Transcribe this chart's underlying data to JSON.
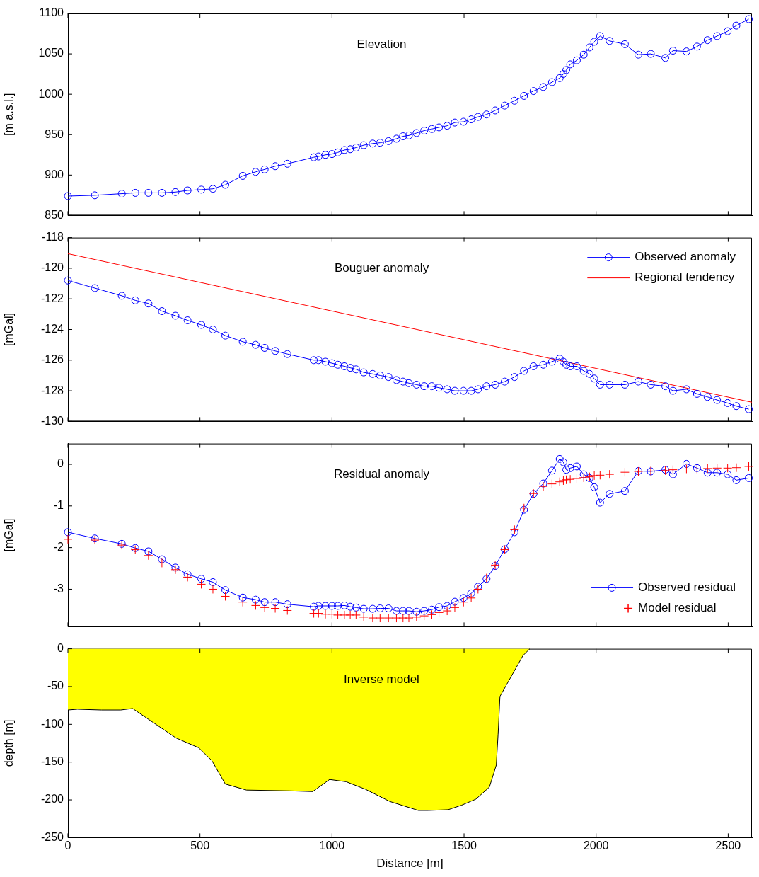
{
  "chart_data": [
    {
      "type": "line",
      "title": "Elevation",
      "ylabel": "[m a.s.l.]",
      "xlim": [
        0,
        2590
      ],
      "xticks": [
        0,
        500,
        1000,
        1500,
        2000,
        2500
      ],
      "ylim": [
        850,
        1100
      ],
      "yticks": [
        850,
        900,
        950,
        1000,
        1050,
        1100
      ],
      "tick_labels": "y",
      "legend": false,
      "x": [
        0,
        102,
        204,
        255,
        305,
        356,
        407,
        453,
        505,
        549,
        596,
        662,
        711,
        745,
        785,
        831,
        931,
        949,
        975,
        1000,
        1022,
        1047,
        1069,
        1091,
        1120,
        1154,
        1182,
        1214,
        1244,
        1269,
        1291,
        1320,
        1349,
        1378,
        1405,
        1436,
        1465,
        1498,
        1527,
        1553,
        1585,
        1618,
        1654,
        1691,
        1727,
        1763,
        1800,
        1833,
        1862,
        1876,
        1887,
        1902,
        1927,
        1953,
        1975,
        1993,
        2015,
        2051,
        2109,
        2160,
        2207,
        2262,
        2291,
        2342,
        2382,
        2422,
        2458,
        2498,
        2531,
        2578
      ],
      "series": [
        {
          "color": "#0000ff",
          "marker": "circle",
          "values": [
            874,
            875,
            877,
            878,
            878,
            878,
            879,
            881,
            882,
            883,
            888,
            899,
            904,
            907,
            911,
            914,
            922,
            923,
            925,
            926,
            928,
            931,
            932,
            934,
            937,
            939,
            940,
            942,
            945,
            948,
            949,
            952,
            955,
            957,
            959,
            961,
            965,
            966,
            969,
            972,
            975,
            980,
            986,
            992,
            998,
            1004,
            1009,
            1015,
            1020,
            1025,
            1030,
            1037,
            1042,
            1049,
            1058,
            1065,
            1072,
            1066,
            1062,
            1049,
            1050,
            1045,
            1054,
            1053,
            1059,
            1067,
            1072,
            1078,
            1085,
            1093
          ]
        }
      ]
    },
    {
      "type": "line",
      "title": "Bouguer anomaly",
      "ylabel": "[mGal]",
      "xlim": [
        0,
        2590
      ],
      "xticks": [
        0,
        500,
        1000,
        1500,
        2000,
        2500
      ],
      "ylim": [
        -130,
        -118
      ],
      "yticks": [
        -130,
        -128,
        -126,
        -124,
        -122,
        -120,
        -118
      ],
      "tick_labels": "y",
      "legend": "top right",
      "x": [
        0,
        102,
        204,
        255,
        305,
        356,
        407,
        453,
        505,
        549,
        596,
        662,
        711,
        745,
        785,
        831,
        931,
        949,
        975,
        1000,
        1022,
        1047,
        1069,
        1091,
        1120,
        1154,
        1182,
        1214,
        1244,
        1269,
        1291,
        1320,
        1349,
        1378,
        1405,
        1436,
        1465,
        1498,
        1527,
        1553,
        1585,
        1618,
        1654,
        1691,
        1727,
        1763,
        1800,
        1833,
        1862,
        1876,
        1887,
        1902,
        1927,
        1953,
        1975,
        1993,
        2015,
        2051,
        2109,
        2160,
        2207,
        2262,
        2291,
        2342,
        2382,
        2422,
        2458,
        2498,
        2531,
        2578
      ],
      "series": [
        {
          "name": "Observed anomaly",
          "color": "#0000ff",
          "marker": "circle",
          "values": [
            -120.8,
            -121.3,
            -121.8,
            -122.1,
            -122.3,
            -122.8,
            -123.1,
            -123.4,
            -123.7,
            -124.0,
            -124.4,
            -124.8,
            -125.0,
            -125.2,
            -125.4,
            -125.6,
            -126.0,
            -126.0,
            -126.1,
            -126.2,
            -126.3,
            -126.4,
            -126.5,
            -126.6,
            -126.8,
            -126.9,
            -127.0,
            -127.1,
            -127.3,
            -127.4,
            -127.5,
            -127.6,
            -127.7,
            -127.7,
            -127.8,
            -127.9,
            -128.0,
            -128.0,
            -128.0,
            -127.9,
            -127.7,
            -127.6,
            -127.4,
            -127.1,
            -126.7,
            -126.4,
            -126.3,
            -126.1,
            -125.9,
            -126.1,
            -126.3,
            -126.4,
            -126.4,
            -126.7,
            -126.9,
            -127.2,
            -127.6,
            -127.6,
            -127.6,
            -127.4,
            -127.6,
            -127.7,
            -128.0,
            -127.9,
            -128.2,
            -128.4,
            -128.6,
            -128.8,
            -129.0,
            -129.2
          ]
        },
        {
          "name": "Regional tendency",
          "color": "#ff0000",
          "marker": "none",
          "x": [
            0,
            2590
          ],
          "values": [
            -119.05,
            -128.75
          ]
        }
      ]
    },
    {
      "type": "line",
      "title": "Residual anomaly",
      "ylabel": "[mGal]",
      "xlim": [
        0,
        2590
      ],
      "xticks": [
        0,
        500,
        1000,
        1500,
        2000,
        2500
      ],
      "ylim": [
        -3.9,
        0.5
      ],
      "yticks": [
        -3,
        -2,
        -1,
        0
      ],
      "tick_labels": "y",
      "legend": "bottom right",
      "x": [
        0,
        102,
        204,
        255,
        305,
        356,
        407,
        453,
        505,
        549,
        596,
        662,
        711,
        745,
        785,
        831,
        931,
        949,
        975,
        1000,
        1022,
        1047,
        1069,
        1091,
        1120,
        1154,
        1182,
        1214,
        1244,
        1269,
        1291,
        1320,
        1349,
        1378,
        1405,
        1436,
        1465,
        1498,
        1527,
        1553,
        1585,
        1618,
        1654,
        1691,
        1727,
        1763,
        1800,
        1833,
        1862,
        1876,
        1887,
        1902,
        1927,
        1953,
        1975,
        1993,
        2015,
        2051,
        2109,
        2160,
        2207,
        2262,
        2291,
        2342,
        2382,
        2422,
        2458,
        2498,
        2531,
        2578
      ],
      "series": [
        {
          "name": "Observed residual",
          "color": "#0000ff",
          "marker": "circle",
          "values": [
            -1.63,
            -1.78,
            -1.91,
            -2.01,
            -2.09,
            -2.28,
            -2.48,
            -2.64,
            -2.75,
            -2.83,
            -3.02,
            -3.2,
            -3.25,
            -3.31,
            -3.31,
            -3.36,
            -3.42,
            -3.4,
            -3.4,
            -3.4,
            -3.4,
            -3.39,
            -3.42,
            -3.44,
            -3.47,
            -3.47,
            -3.46,
            -3.46,
            -3.52,
            -3.52,
            -3.52,
            -3.54,
            -3.52,
            -3.49,
            -3.43,
            -3.4,
            -3.3,
            -3.21,
            -3.1,
            -2.94,
            -2.75,
            -2.44,
            -2.04,
            -1.63,
            -1.09,
            -0.71,
            -0.46,
            -0.15,
            0.13,
            0.05,
            -0.13,
            -0.09,
            -0.05,
            -0.24,
            -0.33,
            -0.55,
            -0.92,
            -0.71,
            -0.64,
            -0.16,
            -0.17,
            -0.13,
            -0.24,
            0.01,
            -0.09,
            -0.2,
            -0.2,
            -0.24,
            -0.38,
            -0.33
          ]
        },
        {
          "type": "scatter",
          "name": "Model residual",
          "color": "#ff0000",
          "marker": "cross",
          "values": [
            -1.8,
            -1.82,
            -1.94,
            -2.05,
            -2.19,
            -2.37,
            -2.53,
            -2.71,
            -2.88,
            -3.0,
            -3.17,
            -3.31,
            -3.39,
            -3.44,
            -3.46,
            -3.51,
            -3.58,
            -3.58,
            -3.6,
            -3.6,
            -3.62,
            -3.62,
            -3.62,
            -3.62,
            -3.67,
            -3.69,
            -3.69,
            -3.69,
            -3.69,
            -3.69,
            -3.69,
            -3.67,
            -3.64,
            -3.61,
            -3.56,
            -3.52,
            -3.44,
            -3.31,
            -3.21,
            -3.0,
            -2.73,
            -2.42,
            -2.05,
            -1.57,
            -1.05,
            -0.7,
            -0.53,
            -0.47,
            -0.42,
            -0.39,
            -0.37,
            -0.36,
            -0.34,
            -0.32,
            -0.3,
            -0.27,
            -0.26,
            -0.24,
            -0.19,
            -0.17,
            -0.16,
            -0.15,
            -0.13,
            -0.11,
            -0.11,
            -0.1,
            -0.09,
            -0.09,
            -0.08,
            -0.05
          ]
        }
      ]
    },
    {
      "type": "area",
      "title": "Inverse model",
      "ylabel": "depth [m]",
      "xlabel": "Distance [m]",
      "xlim": [
        0,
        2590
      ],
      "xticks": [
        0,
        500,
        1000,
        1500,
        2000,
        2500
      ],
      "ylim": [
        -250,
        0
      ],
      "yticks": [
        -250,
        -200,
        -150,
        -100,
        -50,
        0
      ],
      "legend": false,
      "x": [
        0,
        36,
        127,
        200,
        245,
        291,
        409,
        495,
        545,
        596,
        676,
        836,
        927,
        991,
        1054,
        1127,
        1218,
        1327,
        1364,
        1440,
        1491,
        1545,
        1596,
        1622,
        1629,
        1636,
        1723,
        1749
      ],
      "series": [
        {
          "color": "#ffff00",
          "values": [
            -81,
            -80,
            -81,
            -81,
            -79,
            -90,
            -118,
            -131,
            -148,
            -179,
            -187,
            -188,
            -189,
            -173,
            -176,
            -186,
            -202,
            -214,
            -214,
            -213,
            -207,
            -199,
            -183,
            -154,
            -113,
            -63,
            -9,
            0
          ]
        }
      ]
    }
  ]
}
